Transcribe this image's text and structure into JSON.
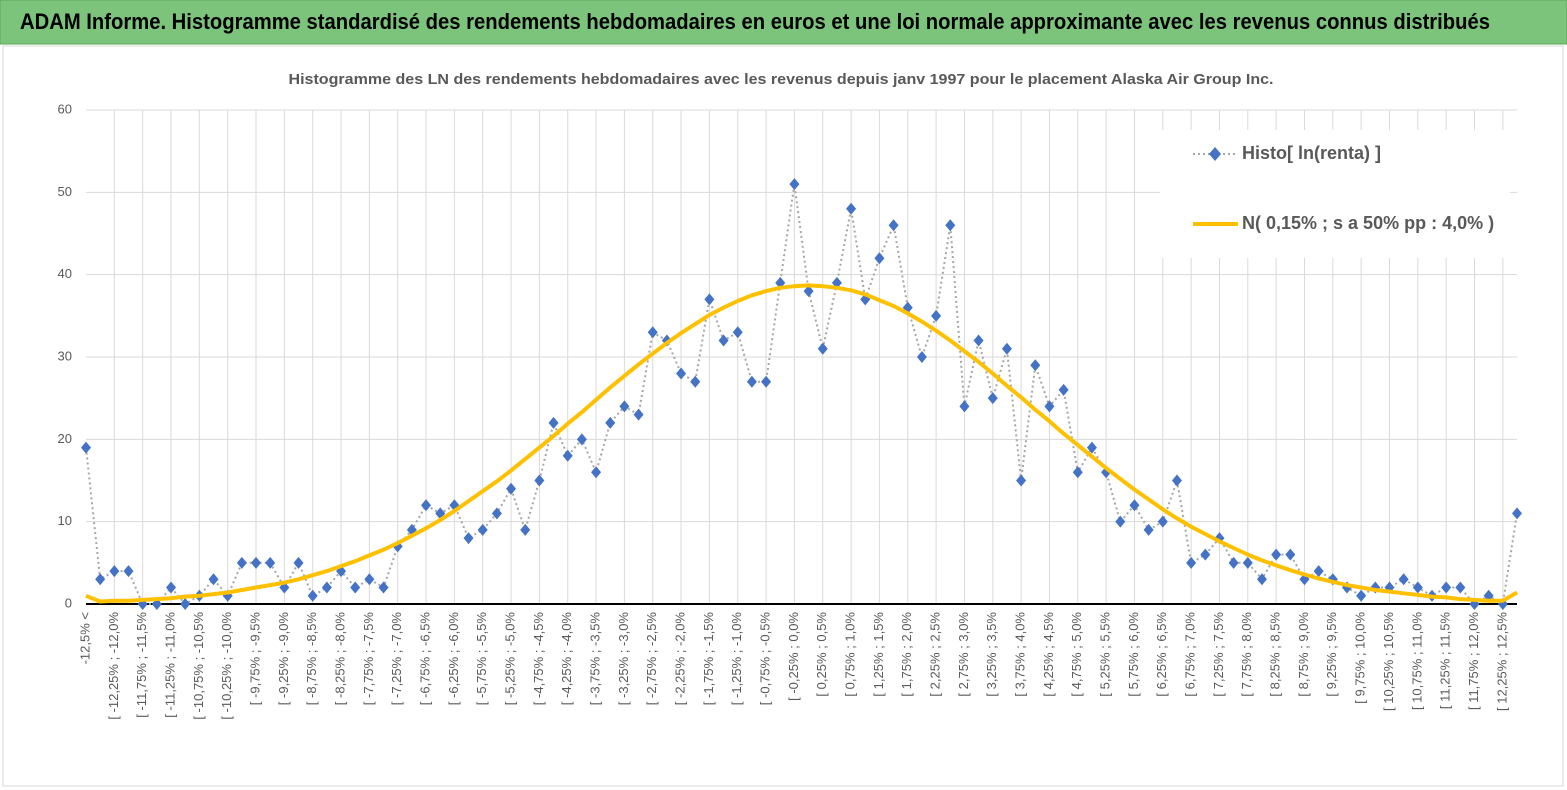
{
  "header": {
    "title": "ADAM Informe. Histogramme standardisé des rendements hebdomadaires en euros et une loi normale approximante avec les revenus connus distribués"
  },
  "chart_data": {
    "type": "line",
    "title": "Histogramme des LN des rendements hebdomadaires avec les revenus depuis janv 1997 pour le placement Alaska Air Group Inc.",
    "categories": [
      "-12,5% <",
      null,
      "[ -12,25% ; -12,0%",
      null,
      "[ -11,75% ; -11,5%",
      null,
      "[ -11,25% ; -11,0%",
      null,
      "[ -10,75% ; -10,5%",
      null,
      "[ -10,25% ; -10,0%",
      null,
      "[ -9,75% ; -9,5%",
      null,
      "[ -9,25% ; -9,0%",
      null,
      "[ -8,75% ; -8,5%",
      null,
      "[ -8,25% ; -8,0%",
      null,
      "[ -7,75% ; -7,5%",
      null,
      "[ -7,25% ; -7,0%",
      null,
      "[ -6,75% ; -6,5%",
      null,
      "[ -6,25% ; -6,0%",
      null,
      "[ -5,75% ; -5,5%",
      null,
      "[ -5,25% ; -5,0%",
      null,
      "[ -4,75% ; -4,5%",
      null,
      "[ -4,25% ; -4,0%",
      null,
      "[ -3,75% ; -3,5%",
      null,
      "[ -3,25% ; -3,0%",
      null,
      "[ -2,75% ; -2,5%",
      null,
      "[ -2,25% ; -2,0%",
      null,
      "[ -1,75% ; -1,5%",
      null,
      "[ -1,25% ; -1,0%",
      null,
      "[ -0,75% ; -0,5%",
      null,
      "[ -0,25% ; 0,0%",
      null,
      "[ 0,25% ; 0,5%",
      null,
      "[ 0,75% ; 1,0%",
      null,
      "[ 1,25% ; 1,5%",
      null,
      "[ 1,75% ; 2,0%",
      null,
      "[ 2,25% ; 2,5%",
      null,
      "[ 2,75% ; 3,0%",
      null,
      "[ 3,25% ; 3,5%",
      null,
      "[ 3,75% ; 4,0%",
      null,
      "[ 4,25% ; 4,5%",
      null,
      "[ 4,75% ; 5,0%",
      null,
      "[ 5,25% ; 5,5%",
      null,
      "[ 5,75% ; 6,0%",
      null,
      "[ 6,25% ; 6,5%",
      null,
      "[ 6,75% ; 7,0%",
      null,
      "[ 7,25% ; 7,5%",
      null,
      "[ 7,75% ; 8,0%",
      null,
      "[ 8,25% ; 8,5%",
      null,
      "[ 8,75% ; 9,0%",
      null,
      "[ 9,25% ; 9,5%",
      null,
      "[ 9,75% ; 10,0%",
      null,
      "[ 10,25% ; 10,5%",
      null,
      "[ 10,75% ; 11,0%",
      null,
      "[ 11,25% ; 11,5%",
      null,
      "[ 11,75% ; 12,0%",
      null,
      "[ 12,25% ; 12,5%",
      null
    ],
    "series": [
      {
        "name": "Histo[ ln(renta) ]",
        "color": "#4472c4",
        "line_color": "#a6a6a6",
        "marker": "diamond",
        "line_style": "dotted",
        "values": [
          19,
          3,
          4,
          4,
          0,
          0,
          2,
          0,
          1,
          3,
          1,
          5,
          5,
          5,
          2,
          5,
          1,
          2,
          4,
          2,
          3,
          2,
          7,
          9,
          12,
          11,
          12,
          8,
          9,
          11,
          14,
          9,
          15,
          22,
          18,
          20,
          16,
          22,
          24,
          23,
          33,
          32,
          28,
          27,
          37,
          32,
          33,
          27,
          27,
          39,
          51,
          38,
          31,
          39,
          48,
          37,
          42,
          46,
          36,
          30,
          35,
          46,
          24,
          32,
          25,
          31,
          15,
          29,
          24,
          26,
          16,
          19,
          16,
          10,
          12,
          9,
          10,
          15,
          5,
          6,
          8,
          5,
          5,
          3,
          6,
          6,
          3,
          4,
          3,
          2,
          1,
          2,
          2,
          3,
          2,
          1,
          2,
          2,
          0,
          1,
          0,
          11
        ]
      },
      {
        "name": "N( 0,15% ; s a 50% pp : 4,0% )",
        "color": "#ffc000",
        "line_style": "solid",
        "values": [
          1.0,
          0.3,
          0.4,
          0.4,
          0.5,
          0.6,
          0.7,
          0.9,
          1.0,
          1.2,
          1.4,
          1.7,
          2.0,
          2.3,
          2.6,
          3.0,
          3.5,
          4.0,
          4.6,
          5.2,
          5.9,
          6.6,
          7.4,
          8.3,
          9.2,
          10.2,
          11.3,
          12.5,
          13.7,
          14.9,
          16.2,
          17.6,
          19.0,
          20.4,
          21.9,
          23.3,
          24.8,
          26.3,
          27.7,
          29.1,
          30.4,
          31.7,
          32.9,
          34.0,
          35.1,
          36.0,
          36.8,
          37.5,
          38.0,
          38.4,
          38.6,
          38.7,
          38.6,
          38.4,
          38.1,
          37.6,
          36.9,
          36.2,
          35.3,
          34.3,
          33.2,
          32.0,
          30.7,
          29.4,
          28.0,
          26.5,
          25.1,
          23.6,
          22.2,
          20.7,
          19.3,
          17.9,
          16.5,
          15.2,
          13.9,
          12.7,
          11.5,
          10.4,
          9.4,
          8.5,
          7.6,
          6.8,
          6.0,
          5.3,
          4.7,
          4.1,
          3.6,
          3.1,
          2.7,
          2.3,
          2.0,
          1.7,
          1.5,
          1.3,
          1.1,
          0.9,
          0.8,
          0.6,
          0.5,
          0.4,
          0.4,
          1.4
        ]
      }
    ],
    "ylim": [
      0,
      60
    ],
    "yticks": [
      0,
      10,
      20,
      30,
      40,
      50,
      60
    ],
    "grid": true,
    "legend": "upper right"
  }
}
